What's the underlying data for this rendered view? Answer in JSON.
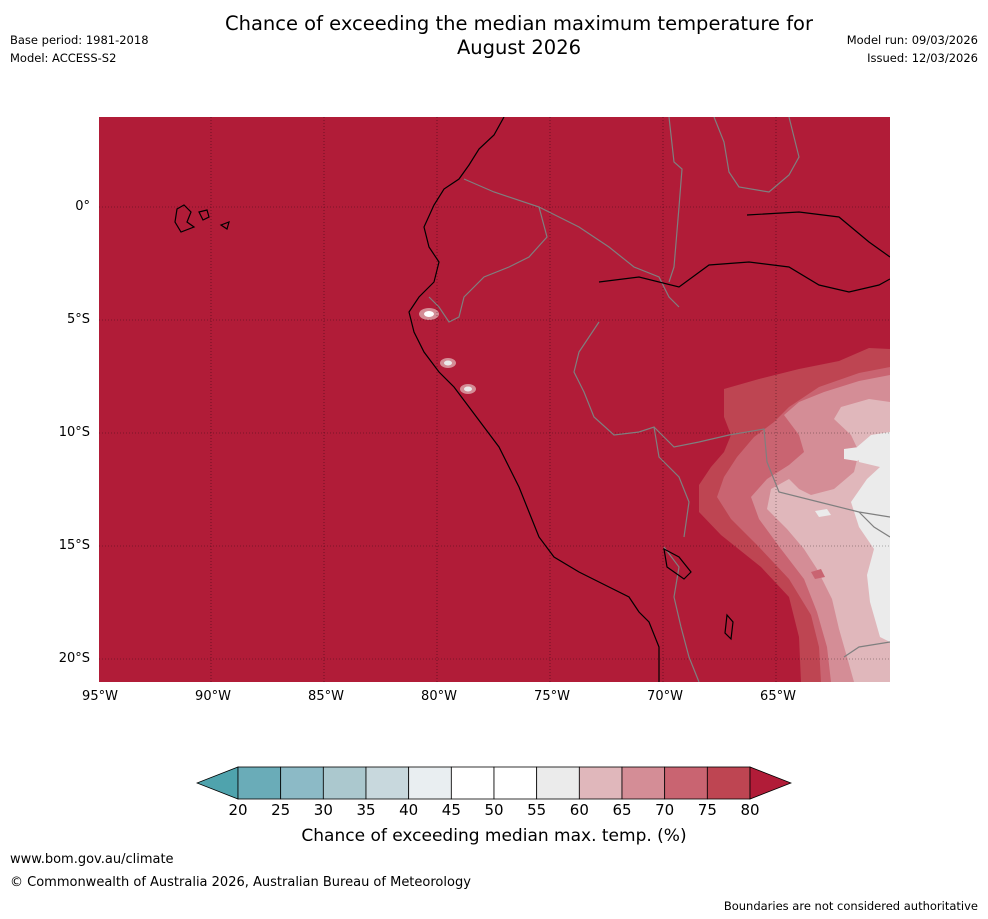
{
  "title": {
    "line1": "Chance of exceeding the median maximum temperature for",
    "line2": "August 2026"
  },
  "meta_left": {
    "base_period": "Base period: 1981-2018",
    "model": "Model: ACCESS-S2"
  },
  "meta_right": {
    "model_run": "Model run: 09/03/2026",
    "issued": "Issued: 12/03/2026"
  },
  "map": {
    "lat_labels": [
      "0°",
      "5°S",
      "10°S",
      "15°S",
      "20°S"
    ],
    "lon_labels": [
      "95°W",
      "90°W",
      "85°W",
      "80°W",
      "75°W",
      "70°W",
      "65°W"
    ],
    "background_color": "#b11c38",
    "coast_color": "#000000",
    "border_color": "#7f7f7f"
  },
  "colorbar": {
    "ticks": [
      "20",
      "25",
      "30",
      "35",
      "40",
      "45",
      "50",
      "55",
      "60",
      "65",
      "70",
      "75",
      "80"
    ],
    "colors": [
      "#6aacb8",
      "#8cbac6",
      "#abc8ce",
      "#c8d8dd",
      "#e9eef1",
      "#ffffff",
      "#ffffff",
      "#ebebeb",
      "#e0b7bb",
      "#d48d96",
      "#c96471",
      "#be4552"
    ],
    "under_color": "#4fa3ad",
    "over_color": "#b11c38",
    "label": "Chance of exceeding median max. temp. (%)"
  },
  "footer": {
    "url": "www.bom.gov.au/climate",
    "copyright": "© Commonwealth of Australia 2026, Australian Bureau of Meteorology",
    "disclaimer": "Boundaries are not considered authoritative"
  }
}
